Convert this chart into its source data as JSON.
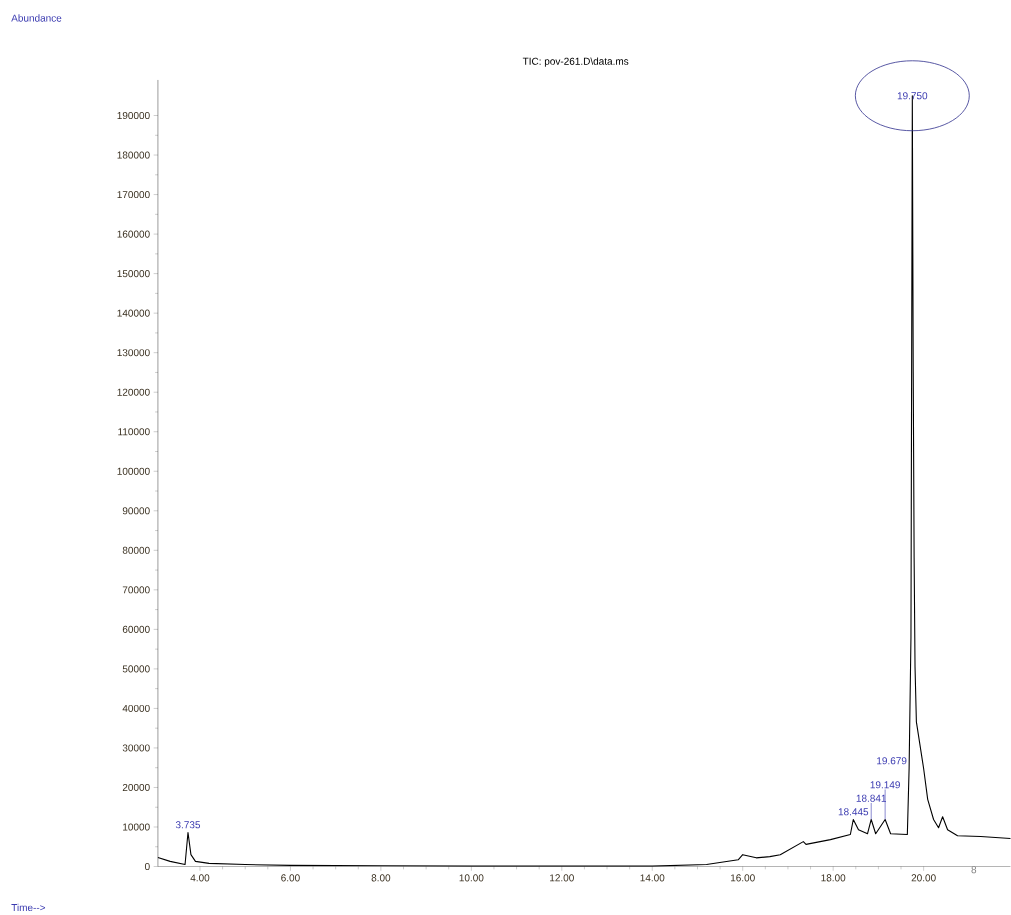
{
  "chart_data": {
    "type": "line",
    "title": "TIC: pov-261.D\\data.ms",
    "x": [
      3.07,
      3.34,
      3.67,
      3.735,
      3.8,
      3.9,
      4.2,
      5.0,
      6.0,
      8.0,
      10.0,
      14.0,
      15.2,
      15.9,
      16.0,
      16.3,
      16.6,
      16.83,
      17.34,
      17.4,
      17.94,
      18.38,
      18.445,
      18.56,
      18.76,
      18.841,
      18.94,
      19.149,
      19.27,
      19.64,
      19.679,
      19.72,
      19.75,
      19.77,
      19.79,
      19.81,
      19.84,
      20.0,
      20.09,
      20.22,
      20.33,
      20.42,
      20.53,
      20.75,
      21.26,
      21.92
    ],
    "values": [
      2300,
      1300,
      500,
      8600,
      3000,
      1300,
      800,
      500,
      300,
      200,
      100,
      100,
      500,
      1700,
      3000,
      2200,
      2500,
      3000,
      6300,
      5600,
      6800,
      8100,
      11900,
      9300,
      8300,
      11900,
      8300,
      11900,
      8300,
      8100,
      24800,
      58000,
      195000,
      125000,
      78000,
      50500,
      36600,
      24800,
      17000,
      11900,
      9800,
      12600,
      9300,
      7800,
      7600,
      7100
    ],
    "color": "#000000",
    "xlim": [
      3.07,
      21.92
    ],
    "ylim": [
      0,
      199000
    ],
    "xticks": [
      {
        "value": 4,
        "label": "4.00"
      },
      {
        "value": 6,
        "label": "6.00"
      },
      {
        "value": 8,
        "label": "8.00"
      },
      {
        "value": 10,
        "label": "10.00"
      },
      {
        "value": 12,
        "label": "12.00"
      },
      {
        "value": 14,
        "label": "14.00"
      },
      {
        "value": 16,
        "label": "16.00"
      },
      {
        "value": 18,
        "label": "18.00"
      },
      {
        "value": 20,
        "label": "20.00"
      }
    ],
    "yticks": [
      0,
      10000,
      20000,
      30000,
      40000,
      50000,
      60000,
      70000,
      80000,
      90000,
      100000,
      110000,
      120000,
      130000,
      140000,
      150000,
      160000,
      170000,
      180000,
      190000
    ],
    "annotations": [
      {
        "text": "3.735",
        "x": 3.735,
        "y": 8600
      },
      {
        "text": "18.445",
        "x": 18.445,
        "y": 11900
      },
      {
        "text": "18.841",
        "x": 18.841,
        "y": 11900
      },
      {
        "text": "19.149",
        "x": 19.149,
        "y": 11900
      },
      {
        "text": "19.679",
        "x": 19.679,
        "y": 24800
      },
      {
        "text": "19.750",
        "x": 19.75,
        "y": 195000
      },
      "Abundance",
      "Time-->",
      "8"
    ]
  }
}
